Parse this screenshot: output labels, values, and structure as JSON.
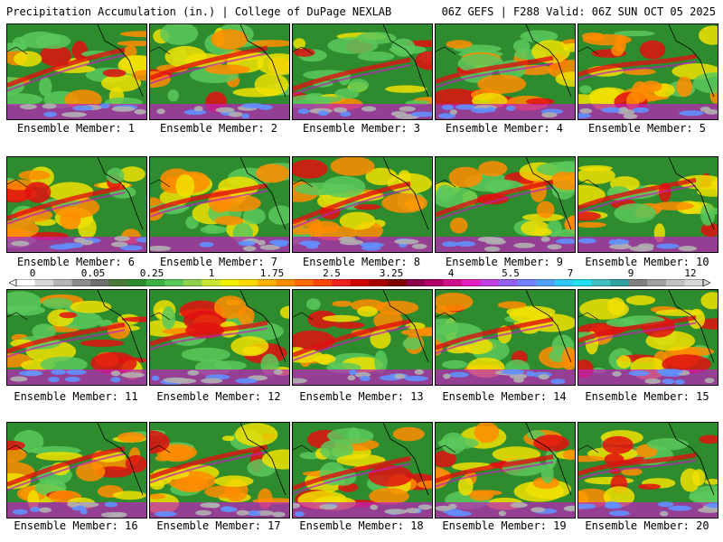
{
  "header": {
    "left_title": "Precipitation Accumulation (in.) | College of DuPage NEXLAB",
    "right_title": "06Z GEFS | F288 Valid: 06Z SUN OCT 05 2025"
  },
  "panels": [
    {
      "label": "Ensemble Member: 1"
    },
    {
      "label": "Ensemble Member: 2"
    },
    {
      "label": "Ensemble Member: 3"
    },
    {
      "label": "Ensemble Member: 4"
    },
    {
      "label": "Ensemble Member: 5"
    },
    {
      "label": "Ensemble Member: 6"
    },
    {
      "label": "Ensemble Member: 7"
    },
    {
      "label": "Ensemble Member: 8"
    },
    {
      "label": "Ensemble Member: 9"
    },
    {
      "label": "Ensemble Member: 10"
    },
    {
      "label": "Ensemble Member: 11"
    },
    {
      "label": "Ensemble Member: 12"
    },
    {
      "label": "Ensemble Member: 13"
    },
    {
      "label": "Ensemble Member: 14"
    },
    {
      "label": "Ensemble Member: 15"
    },
    {
      "label": "Ensemble Member: 16"
    },
    {
      "label": "Ensemble Member: 17"
    },
    {
      "label": "Ensemble Member: 18"
    },
    {
      "label": "Ensemble Member: 19"
    },
    {
      "label": "Ensemble Member: 20"
    }
  ],
  "legend": {
    "tick_labels": [
      "0",
      "0.05",
      "0.25",
      "1",
      "1.75",
      "2.5",
      "3.25",
      "4",
      "5.5",
      "7",
      "9",
      "12"
    ],
    "colors": [
      "#ffffff",
      "#d8d8d8",
      "#b4b4b4",
      "#8c8c8c",
      "#6e6e6e",
      "#4a7a3a",
      "#2e8b2e",
      "#3cb043",
      "#5ac85a",
      "#8fd14f",
      "#c8e632",
      "#f0f000",
      "#ffd700",
      "#ffb000",
      "#ff8c00",
      "#ff6a00",
      "#ff4500",
      "#f02020",
      "#d00000",
      "#a80000",
      "#800000",
      "#8b004b",
      "#b0006a",
      "#d0108a",
      "#e020c0",
      "#c040e0",
      "#9060f0",
      "#7080ff",
      "#50a0ff",
      "#30c8ff",
      "#20e0f0",
      "#40c0c0",
      "#30a0a0",
      "#808080",
      "#a0a0a0",
      "#c0c0c0",
      "#d8d8d8"
    ]
  },
  "panel_colors": {
    "land": "#2e8b2e",
    "light_green": "#5ac85a",
    "yellow": "#f0e000",
    "orange": "#ff8c00",
    "red": "#e01010",
    "magenta": "#c020c0",
    "blue": "#6090ff",
    "gray": "#b0b0b0"
  }
}
